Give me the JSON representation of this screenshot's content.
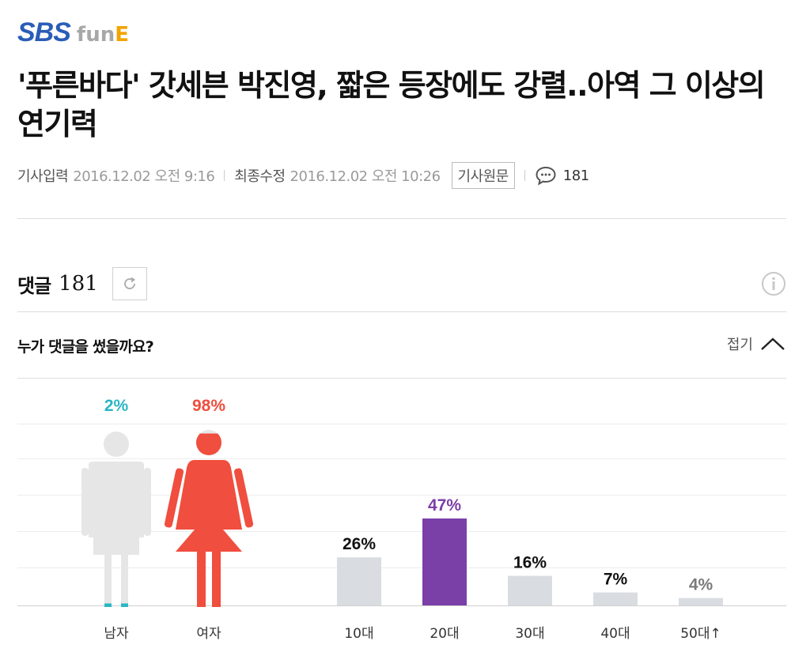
{
  "logo": {
    "brand": "SBS",
    "sub_fun": "fun",
    "sub_e": "E"
  },
  "headline": "'푸른바다' 갓세븐 박진영, 짧은 등장에도 강렬..아역 그 이상의 연기력",
  "meta": {
    "input_label": "기사입력",
    "input_time": "2016.12.02 오전 9:16",
    "modified_label": "최종수정",
    "modified_time": "2016.12.02 오전 10:26",
    "original_label": "기사원문",
    "comment_icon": "speech-bubble-icon",
    "comment_count": "181"
  },
  "comments": {
    "label": "댓글",
    "count": "181",
    "refresh_icon": "refresh-icon",
    "info_icon": "info-icon"
  },
  "who": {
    "title": "누가 댓글을 썼을까요?",
    "fold_label": "접기",
    "fold_icon": "chevron-up-icon"
  },
  "colors": {
    "male": "#29b6c3",
    "female": "#f04e3e",
    "figure_gray": "#e6e6e6",
    "bar_default": "#d9dde1",
    "bar_highlight": "#7b3fa8",
    "label_muted": "#7a7a7a"
  },
  "chart_data": [
    {
      "type": "bar",
      "title": "",
      "categories": [
        "남자",
        "여자"
      ],
      "values": [
        2,
        98
      ],
      "value_labels": [
        "2%",
        "98%"
      ]
    },
    {
      "type": "bar",
      "title": "",
      "categories": [
        "10대",
        "20대",
        "30대",
        "40대",
        "50대↑"
      ],
      "values": [
        26,
        47,
        16,
        7,
        4
      ],
      "value_labels": [
        "26%",
        "47%",
        "16%",
        "7%",
        "4%"
      ],
      "highlight": "20대",
      "ylim": [
        0,
        50
      ]
    }
  ]
}
